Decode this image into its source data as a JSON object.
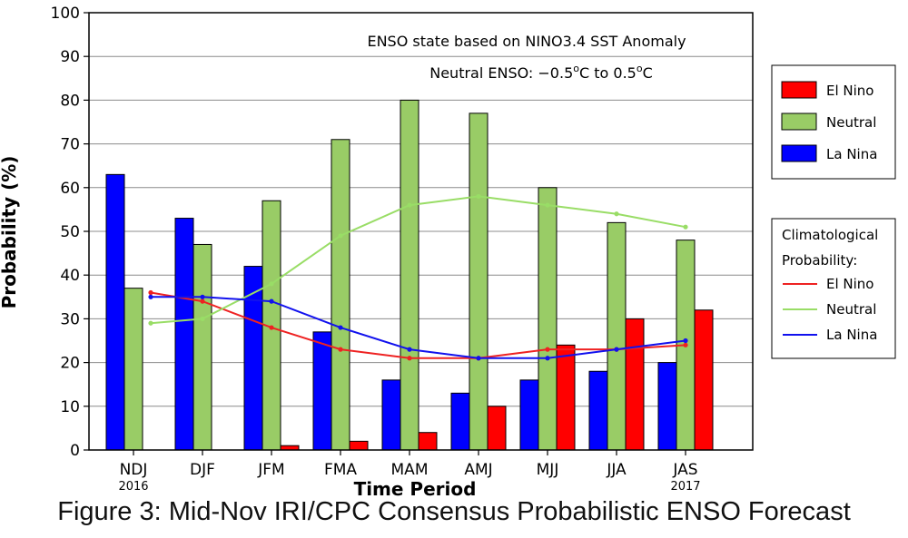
{
  "colors": {
    "el_nino": "#ff0000",
    "neutral": "#99cc66",
    "la_nina": "#0000ff",
    "clim_el_nino": "#ee2222",
    "clim_neutral": "#99dd66",
    "clim_la_nina": "#1111ee"
  },
  "caption": "Figure 3: Mid-Nov IRI/CPC Consensus Probabilistic ENSO Forecast",
  "chart_data": {
    "type": "bar",
    "title": "ENSO state based on NINO3.4 SST Anomaly",
    "subtitle_prefix": "Neutral ENSO: −0.5",
    "subtitle_mid": "C to 0.5",
    "subtitle_suffix": "C",
    "degree_symbol": "o",
    "xlabel": "Time Period",
    "ylabel": "Probability (%)",
    "ylim": [
      0,
      100
    ],
    "yticks": [
      0,
      10,
      20,
      30,
      40,
      50,
      60,
      70,
      80,
      90,
      100
    ],
    "grid": true,
    "categories": [
      "NDJ",
      "DJF",
      "JFM",
      "FMA",
      "MAM",
      "AMJ",
      "MJJ",
      "JJA",
      "JAS"
    ],
    "year_labels": [
      {
        "category_index": 0,
        "text": "2016"
      },
      {
        "category_index": 8,
        "text": "2017"
      }
    ],
    "series": [
      {
        "name": "La Nina",
        "values": [
          63,
          53,
          42,
          27,
          16,
          13,
          16,
          18,
          20
        ]
      },
      {
        "name": "Neutral",
        "values": [
          37,
          47,
          57,
          71,
          80,
          77,
          60,
          52,
          48
        ]
      },
      {
        "name": "El Nino",
        "values": [
          0,
          0,
          1,
          2,
          4,
          10,
          24,
          30,
          32
        ]
      }
    ],
    "climatology": [
      {
        "name": "El Nino",
        "values": [
          36,
          34,
          28,
          23,
          21,
          21,
          23,
          23,
          24
        ]
      },
      {
        "name": "Neutral",
        "values": [
          29,
          30,
          38,
          49,
          56,
          58,
          56,
          54,
          51
        ]
      },
      {
        "name": "La Nina",
        "values": [
          35,
          35,
          34,
          28,
          23,
          21,
          21,
          23,
          25
        ]
      }
    ],
    "legend_placement": "right",
    "legend_forecast": [
      "El Nino",
      "Neutral",
      "La Nina"
    ],
    "legend_clim_title_1": "Climatological",
    "legend_clim_title_2": "Probability:",
    "legend_clim": [
      "El Nino",
      "Neutral",
      "La Nina"
    ]
  }
}
